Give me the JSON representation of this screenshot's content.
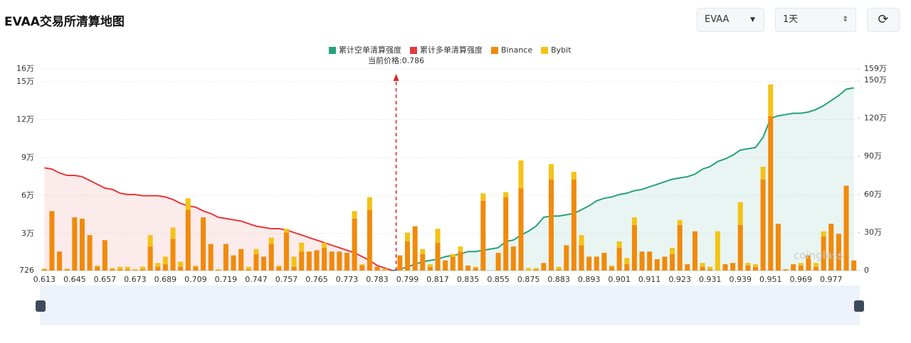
{
  "header": {
    "title": "EVAA交易所清算地图",
    "coin": "EVAA",
    "range": "1天"
  },
  "watermark": "coinglass",
  "chart_data": {
    "type": "bar",
    "annotation": "当前价格:0.786",
    "categories": [
      "0.613",
      null,
      null,
      null,
      "0.645",
      null,
      null,
      null,
      "0.657",
      null,
      null,
      null,
      "0.673",
      null,
      null,
      null,
      "0.689",
      null,
      null,
      null,
      "0.709",
      null,
      null,
      null,
      "0.719",
      null,
      null,
      null,
      "0.747",
      null,
      null,
      null,
      "0.757",
      null,
      null,
      null,
      "0.765",
      null,
      null,
      null,
      "0.773",
      null,
      null,
      null,
      "0.783",
      null,
      null,
      null,
      "0.799",
      null,
      null,
      null,
      "0.817",
      null,
      null,
      null,
      "0.835",
      null,
      null,
      null,
      "0.855",
      null,
      null,
      null,
      "0.875",
      null,
      null,
      null,
      "0.883",
      null,
      null,
      null,
      "0.893",
      null,
      null,
      null,
      "0.901",
      null,
      null,
      null,
      "0.911",
      null,
      null,
      null,
      "0.923",
      null,
      null,
      null,
      "0.931",
      null,
      null,
      null,
      "0.939",
      null,
      null,
      null,
      "0.951",
      null,
      null,
      null,
      "0.969",
      null,
      null,
      null,
      "0.977",
      null,
      null,
      null
    ],
    "ylim": [
      726,
      160000
    ],
    "yticks": [
      726,
      {
        "value": 30000,
        "label": "3万"
      },
      {
        "value": 60000,
        "label": "6万"
      },
      {
        "value": 90000,
        "label": "9万"
      },
      {
        "value": 120000,
        "label": "12万"
      },
      {
        "value": 150000,
        "label": "15万"
      },
      {
        "value": 160000,
        "label": "16万"
      }
    ],
    "y2lim": [
      0,
      1590000
    ],
    "y2ticks": [
      0,
      {
        "value": 300000,
        "label": "30万"
      },
      {
        "value": 600000,
        "label": "60万"
      },
      {
        "value": 900000,
        "label": "90万"
      },
      {
        "value": 1200000,
        "label": "120万"
      },
      {
        "value": 1500000,
        "label": "150万"
      },
      {
        "value": 1590000,
        "label": "159万"
      }
    ],
    "grid": true,
    "series": [
      {
        "name": "累计空单清算强度",
        "color": "#26a17b",
        "type": "line",
        "axis": "y2",
        "values": [
          null,
          null,
          null,
          null,
          null,
          null,
          null,
          null,
          null,
          null,
          null,
          null,
          null,
          null,
          null,
          null,
          null,
          null,
          null,
          null,
          null,
          null,
          null,
          null,
          null,
          null,
          null,
          null,
          null,
          null,
          null,
          null,
          null,
          null,
          null,
          null,
          null,
          null,
          null,
          null,
          null,
          null,
          null,
          null,
          null,
          null,
          0,
          10000,
          30000,
          50000,
          70000,
          80000,
          90000,
          110000,
          120000,
          130000,
          150000,
          150000,
          160000,
          170000,
          180000,
          230000,
          240000,
          280000,
          310000,
          350000,
          420000,
          430000,
          430000,
          440000,
          450000,
          480000,
          510000,
          550000,
          570000,
          580000,
          600000,
          610000,
          630000,
          640000,
          660000,
          680000,
          700000,
          720000,
          730000,
          740000,
          760000,
          800000,
          820000,
          860000,
          880000,
          910000,
          950000,
          960000,
          970000,
          1050000,
          1200000,
          1220000,
          1230000,
          1240000,
          1240000,
          1250000,
          1270000,
          1300000,
          1340000,
          1380000,
          1430000,
          1440000
        ]
      },
      {
        "name": "累计多单清算强度",
        "color": "#e5383b",
        "type": "line",
        "axis": "y2",
        "values": [
          810000,
          800000,
          770000,
          750000,
          750000,
          740000,
          710000,
          680000,
          650000,
          640000,
          610000,
          600000,
          600000,
          590000,
          590000,
          590000,
          580000,
          560000,
          530000,
          510000,
          500000,
          470000,
          450000,
          420000,
          410000,
          400000,
          390000,
          370000,
          350000,
          340000,
          330000,
          330000,
          320000,
          300000,
          280000,
          260000,
          240000,
          220000,
          200000,
          180000,
          160000,
          140000,
          110000,
          80000,
          40000,
          20000,
          0,
          null,
          null,
          null,
          null,
          null,
          null,
          null,
          null,
          null,
          null,
          null,
          null,
          null,
          null,
          null,
          null,
          null,
          null,
          null,
          null,
          null,
          null,
          null,
          null,
          null,
          null,
          null,
          null,
          null,
          null,
          null,
          null,
          null,
          null,
          null,
          null,
          null,
          null,
          null,
          null,
          null,
          null,
          null,
          null,
          null,
          null,
          null,
          null,
          null,
          null,
          null,
          null,
          null,
          null,
          null,
          null,
          null,
          null,
          null,
          null,
          null
        ]
      },
      {
        "name": "Binance",
        "color": "#f08a0b",
        "type": "bar",
        "values": [
          1000,
          47000,
          15000,
          1000,
          42000,
          41000,
          28000,
          3000,
          24000,
          1000,
          1000,
          1000,
          500,
          1000,
          19000,
          3000,
          5000,
          25000,
          3000,
          48000,
          3000,
          42000,
          21000,
          500,
          21000,
          12000,
          17000,
          1000,
          13000,
          11000,
          21000,
          3000,
          30000,
          3000,
          15000,
          15000,
          16000,
          18000,
          15000,
          15000,
          14000,
          41000,
          4000,
          48000,
          3000,
          500,
          0,
          12000,
          23000,
          35000,
          13000,
          3000,
          22000,
          8000,
          11000,
          15000,
          4000,
          2000,
          55000,
          0,
          14000,
          58000,
          19000,
          65000,
          0,
          1000,
          6000,
          72000,
          1000,
          20000,
          72000,
          20000,
          11000,
          11000,
          14000,
          3000,
          18000,
          5000,
          36000,
          15000,
          15000,
          9000,
          11000,
          13000,
          36000,
          5000,
          31000,
          3000,
          1000,
          0,
          5000,
          6000,
          36000,
          4000,
          3000,
          72000,
          122000,
          37000,
          1000,
          5000,
          4000,
          12000,
          3000,
          27000,
          37000,
          29000,
          67000,
          8000
        ]
      },
      {
        "name": "Bybit",
        "color": "#f3c316",
        "type": "bar",
        "values": [
          500,
          0,
          0,
          500,
          0,
          0,
          0,
          1000,
          0,
          1000,
          2000,
          2000,
          500,
          2000,
          9000,
          3000,
          6000,
          9000,
          4000,
          9000,
          1000,
          0,
          0,
          500,
          0,
          0,
          0,
          2000,
          4000,
          0,
          5000,
          1000,
          3000,
          8000,
          7000,
          0,
          0,
          4000,
          0,
          0,
          0,
          6000,
          1000,
          10000,
          0,
          1000,
          0,
          0,
          7000,
          0,
          4000,
          2000,
          11000,
          0,
          2000,
          4000,
          0,
          1000,
          6000,
          0,
          0,
          4000,
          0,
          22000,
          2000,
          1000,
          0,
          12000,
          2000,
          0,
          6000,
          8000,
          0,
          0,
          0,
          1000,
          5000,
          5000,
          6000,
          0,
          0,
          0,
          0,
          5000,
          4000,
          0,
          0,
          3000,
          2000,
          31000,
          0,
          0,
          18000,
          2000,
          2000,
          10000,
          25000,
          0,
          0,
          0,
          2000,
          0,
          3000,
          4000,
          0,
          0,
          0,
          0
        ]
      }
    ]
  }
}
